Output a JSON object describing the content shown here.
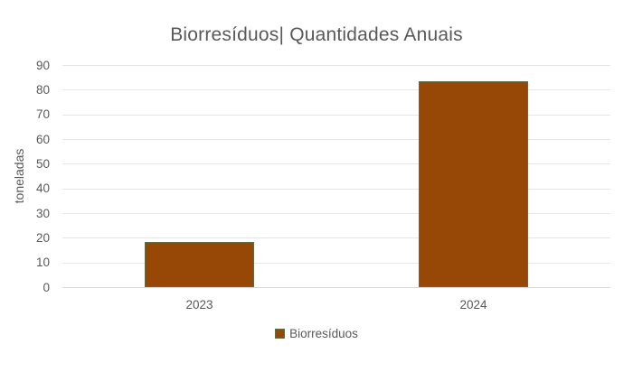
{
  "chart_data": {
    "type": "bar",
    "title": "Biorresíduos| Quantidades Anuais",
    "ylabel": "toneladas",
    "xlabel": "",
    "categories": [
      "2023",
      "2024"
    ],
    "series": [
      {
        "name": "Biorresíduos",
        "values": [
          18.3,
          83.5
        ]
      }
    ],
    "ylim": [
      0,
      90
    ],
    "ytick_step": 10,
    "yticks": [
      "0",
      "10",
      "20",
      "30",
      "40",
      "50",
      "60",
      "70",
      "80",
      "90"
    ],
    "grid": true,
    "legend_position": "bottom",
    "colors": {
      "bar_fill": "#974706",
      "bar_border": "#5F6B45",
      "text": "#595959",
      "gridline": "#E6E6E6",
      "axis_line": "#D9D9D9",
      "background": "#FFFFFF"
    }
  }
}
